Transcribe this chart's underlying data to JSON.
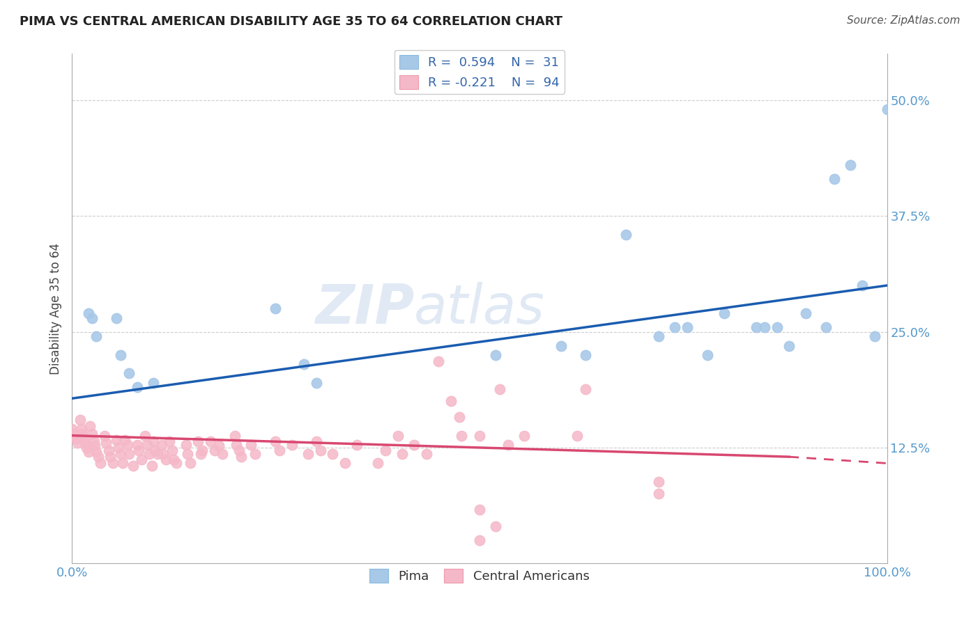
{
  "title": "PIMA VS CENTRAL AMERICAN DISABILITY AGE 35 TO 64 CORRELATION CHART",
  "source": "Source: ZipAtlas.com",
  "ylabel": "Disability Age 35 to 64",
  "xlim": [
    0.0,
    1.0
  ],
  "ylim": [
    0.0,
    0.55
  ],
  "yticks": [
    0.125,
    0.25,
    0.375,
    0.5
  ],
  "ytick_labels": [
    "12.5%",
    "25.0%",
    "37.5%",
    "50.0%"
  ],
  "xtick_labels": [
    "0.0%",
    "100.0%"
  ],
  "legend_r_pima": "R =  0.594",
  "legend_n_pima": "N =  31",
  "legend_r_central": "R = -0.221",
  "legend_n_central": "N =  94",
  "pima_color": "#A8C8E8",
  "central_color": "#F5B8C8",
  "pima_line_color": "#1A5CB0",
  "central_line_color": "#D84870",
  "watermark_zip": "ZIP",
  "watermark_atlas": "atlas",
  "pima_points": [
    [
      0.02,
      0.27
    ],
    [
      0.025,
      0.265
    ],
    [
      0.03,
      0.245
    ],
    [
      0.055,
      0.265
    ],
    [
      0.06,
      0.225
    ],
    [
      0.07,
      0.205
    ],
    [
      0.08,
      0.19
    ],
    [
      0.1,
      0.195
    ],
    [
      0.25,
      0.275
    ],
    [
      0.285,
      0.215
    ],
    [
      0.3,
      0.195
    ],
    [
      0.52,
      0.225
    ],
    [
      0.6,
      0.235
    ],
    [
      0.63,
      0.225
    ],
    [
      0.68,
      0.355
    ],
    [
      0.72,
      0.245
    ],
    [
      0.74,
      0.255
    ],
    [
      0.755,
      0.255
    ],
    [
      0.78,
      0.225
    ],
    [
      0.8,
      0.27
    ],
    [
      0.84,
      0.255
    ],
    [
      0.85,
      0.255
    ],
    [
      0.865,
      0.255
    ],
    [
      0.88,
      0.235
    ],
    [
      0.9,
      0.27
    ],
    [
      0.925,
      0.255
    ],
    [
      0.935,
      0.415
    ],
    [
      0.955,
      0.43
    ],
    [
      0.97,
      0.3
    ],
    [
      0.985,
      0.245
    ],
    [
      1.0,
      0.49
    ]
  ],
  "central_points": [
    [
      0.0,
      0.145
    ],
    [
      0.003,
      0.14
    ],
    [
      0.005,
      0.135
    ],
    [
      0.007,
      0.13
    ],
    [
      0.01,
      0.155
    ],
    [
      0.012,
      0.145
    ],
    [
      0.013,
      0.14
    ],
    [
      0.015,
      0.135
    ],
    [
      0.016,
      0.13
    ],
    [
      0.018,
      0.125
    ],
    [
      0.02,
      0.12
    ],
    [
      0.022,
      0.148
    ],
    [
      0.025,
      0.14
    ],
    [
      0.027,
      0.132
    ],
    [
      0.028,
      0.127
    ],
    [
      0.03,
      0.12
    ],
    [
      0.032,
      0.115
    ],
    [
      0.035,
      0.108
    ],
    [
      0.04,
      0.138
    ],
    [
      0.042,
      0.13
    ],
    [
      0.045,
      0.122
    ],
    [
      0.047,
      0.115
    ],
    [
      0.05,
      0.108
    ],
    [
      0.055,
      0.133
    ],
    [
      0.057,
      0.125
    ],
    [
      0.06,
      0.118
    ],
    [
      0.062,
      0.108
    ],
    [
      0.065,
      0.133
    ],
    [
      0.068,
      0.128
    ],
    [
      0.07,
      0.118
    ],
    [
      0.075,
      0.105
    ],
    [
      0.08,
      0.128
    ],
    [
      0.082,
      0.122
    ],
    [
      0.085,
      0.112
    ],
    [
      0.09,
      0.138
    ],
    [
      0.092,
      0.128
    ],
    [
      0.095,
      0.118
    ],
    [
      0.098,
      0.105
    ],
    [
      0.1,
      0.132
    ],
    [
      0.102,
      0.122
    ],
    [
      0.105,
      0.118
    ],
    [
      0.11,
      0.128
    ],
    [
      0.112,
      0.118
    ],
    [
      0.115,
      0.112
    ],
    [
      0.12,
      0.132
    ],
    [
      0.123,
      0.122
    ],
    [
      0.125,
      0.112
    ],
    [
      0.128,
      0.108
    ],
    [
      0.14,
      0.128
    ],
    [
      0.142,
      0.118
    ],
    [
      0.145,
      0.108
    ],
    [
      0.155,
      0.132
    ],
    [
      0.158,
      0.118
    ],
    [
      0.16,
      0.122
    ],
    [
      0.17,
      0.132
    ],
    [
      0.175,
      0.122
    ],
    [
      0.18,
      0.127
    ],
    [
      0.185,
      0.118
    ],
    [
      0.2,
      0.138
    ],
    [
      0.202,
      0.128
    ],
    [
      0.205,
      0.122
    ],
    [
      0.208,
      0.115
    ],
    [
      0.22,
      0.128
    ],
    [
      0.225,
      0.118
    ],
    [
      0.25,
      0.132
    ],
    [
      0.255,
      0.122
    ],
    [
      0.27,
      0.128
    ],
    [
      0.29,
      0.118
    ],
    [
      0.3,
      0.132
    ],
    [
      0.305,
      0.122
    ],
    [
      0.32,
      0.118
    ],
    [
      0.335,
      0.108
    ],
    [
      0.35,
      0.128
    ],
    [
      0.375,
      0.108
    ],
    [
      0.385,
      0.122
    ],
    [
      0.4,
      0.138
    ],
    [
      0.405,
      0.118
    ],
    [
      0.42,
      0.128
    ],
    [
      0.435,
      0.118
    ],
    [
      0.45,
      0.218
    ],
    [
      0.465,
      0.175
    ],
    [
      0.475,
      0.158
    ],
    [
      0.478,
      0.138
    ],
    [
      0.5,
      0.138
    ],
    [
      0.525,
      0.188
    ],
    [
      0.535,
      0.128
    ],
    [
      0.555,
      0.138
    ],
    [
      0.62,
      0.138
    ],
    [
      0.63,
      0.188
    ],
    [
      0.5,
      0.058
    ],
    [
      0.72,
      0.088
    ],
    [
      0.5,
      0.025
    ],
    [
      0.52,
      0.04
    ],
    [
      0.72,
      0.075
    ]
  ],
  "pima_line": [
    0.0,
    0.178,
    1.0,
    0.3
  ],
  "central_line_solid": [
    0.0,
    0.138,
    0.88,
    0.115
  ],
  "central_line_dash": [
    0.88,
    0.115,
    1.0,
    0.108
  ]
}
